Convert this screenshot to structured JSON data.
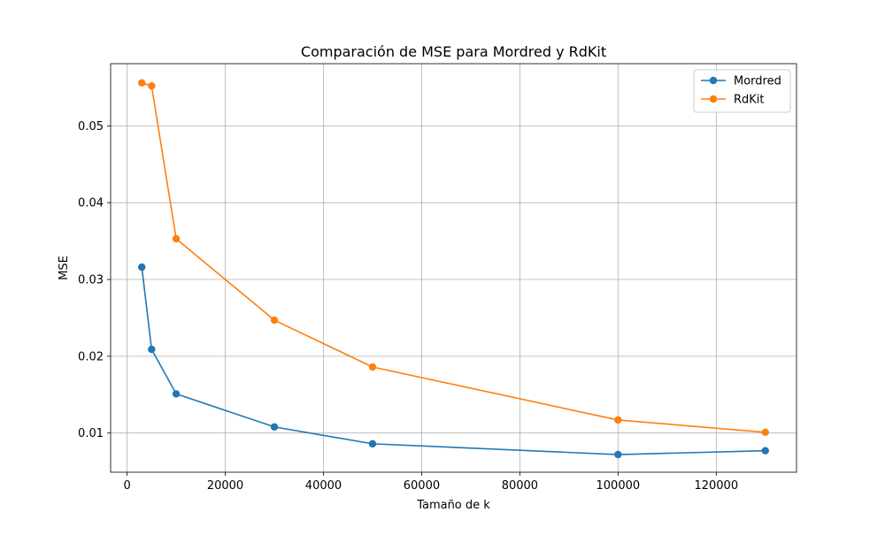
{
  "chart_data": {
    "type": "line",
    "title": "Comparación de MSE para Mordred y RdKit",
    "xlabel": "Tamaño de k",
    "ylabel": "MSE",
    "xlim": [
      -3350,
      136350
    ],
    "ylim": [
      0.0049,
      0.0581
    ],
    "xticks": [
      0,
      20000,
      40000,
      60000,
      80000,
      100000,
      120000
    ],
    "yticks": [
      0.01,
      0.02,
      0.03,
      0.04,
      0.05
    ],
    "ytick_labels": [
      "0.01",
      "0.02",
      "0.03",
      "0.04",
      "0.05"
    ],
    "grid": true,
    "legend_position": "top-right",
    "x": [
      3000,
      5000,
      10000,
      30000,
      50000,
      100000,
      130000
    ],
    "series": [
      {
        "name": "Mordred",
        "color": "#1f77b4",
        "values": [
          0.0316,
          0.0209,
          0.0151,
          0.0108,
          0.0086,
          0.0072,
          0.0077
        ]
      },
      {
        "name": "RdKit",
        "color": "#ff7f0e",
        "values": [
          0.0556,
          0.0552,
          0.0353,
          0.0247,
          0.0186,
          0.0117,
          0.0101
        ]
      }
    ]
  }
}
